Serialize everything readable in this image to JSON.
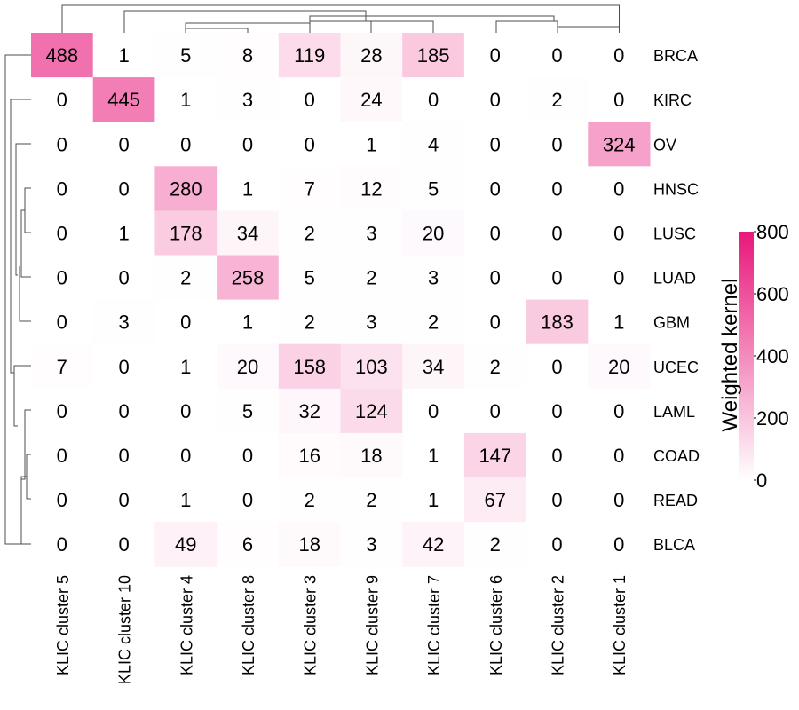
{
  "chart_data": {
    "type": "heatmap",
    "columns": [
      "KLIC cluster 5",
      "KLIC cluster 10",
      "KLIC cluster 4",
      "KLIC cluster 8",
      "KLIC cluster 3",
      "KLIC cluster 9",
      "KLIC cluster 7",
      "KLIC cluster 6",
      "KLIC cluster 2",
      "KLIC cluster 1"
    ],
    "rows": [
      "BRCA",
      "KIRC",
      "OV",
      "HNSC",
      "LUSC",
      "LUAD",
      "GBM",
      "UCEC",
      "LAML",
      "COAD",
      "READ",
      "BLCA"
    ],
    "values": [
      [
        488,
        1,
        5,
        8,
        119,
        28,
        185,
        0,
        0,
        0
      ],
      [
        0,
        445,
        1,
        3,
        0,
        24,
        0,
        0,
        2,
        0
      ],
      [
        0,
        0,
        0,
        0,
        0,
        1,
        4,
        0,
        0,
        324
      ],
      [
        0,
        0,
        280,
        1,
        7,
        12,
        5,
        0,
        0,
        0
      ],
      [
        0,
        1,
        178,
        34,
        2,
        3,
        20,
        0,
        0,
        0
      ],
      [
        0,
        0,
        2,
        258,
        5,
        2,
        3,
        0,
        0,
        0
      ],
      [
        0,
        3,
        0,
        1,
        2,
        3,
        2,
        0,
        183,
        1
      ],
      [
        7,
        0,
        1,
        20,
        158,
        103,
        34,
        2,
        0,
        20
      ],
      [
        0,
        0,
        0,
        5,
        32,
        124,
        0,
        0,
        0,
        0
      ],
      [
        0,
        0,
        0,
        0,
        16,
        18,
        1,
        147,
        0,
        0
      ],
      [
        0,
        0,
        1,
        0,
        2,
        2,
        1,
        67,
        0,
        0
      ],
      [
        0,
        0,
        49,
        6,
        18,
        3,
        42,
        2,
        0,
        0
      ]
    ],
    "legend": {
      "title": "Weighted kernel",
      "ticks": [
        "0",
        "200",
        "400",
        "600",
        "800"
      ],
      "range": [
        0,
        800
      ],
      "low_color": "#ffffff",
      "high_color": "#e8177a",
      "placement": "right"
    },
    "dendrograms": [
      "top",
      "left"
    ],
    "grid": false
  }
}
